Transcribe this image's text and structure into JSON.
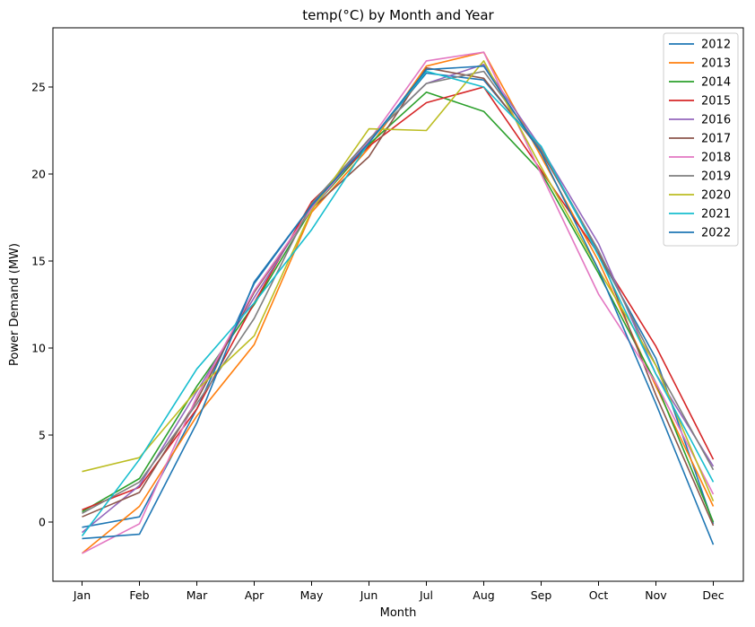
{
  "chart_data": {
    "type": "line",
    "title": "temp(°C) by Month and Year",
    "xlabel": "Month",
    "ylabel": "Power Demand (MW)",
    "ylim": [
      -2.5,
      28
    ],
    "yticks": [
      0,
      5,
      10,
      15,
      20,
      25
    ],
    "categories": [
      "Jan",
      "Feb",
      "Mar",
      "Apr",
      "May",
      "Jun",
      "Jul",
      "Aug",
      "Sep",
      "Oct",
      "Nov",
      "Dec"
    ],
    "grid": false,
    "legend_position": "top-right",
    "series": [
      {
        "name": "2012",
        "color": "#1f77b4",
        "values": [
          -0.3,
          0.3,
          6.5,
          13.7,
          18.2,
          21.8,
          25.8,
          25.4,
          21.4,
          15.4,
          9.4,
          -0.1
        ]
      },
      {
        "name": "2013",
        "color": "#ff7f0e",
        "values": [
          -1.8,
          0.9,
          6.1,
          10.2,
          17.8,
          21.5,
          26.2,
          27.0,
          21.0,
          15.0,
          7.8,
          0.9
        ]
      },
      {
        "name": "2014",
        "color": "#2ca02c",
        "values": [
          0.6,
          2.5,
          7.8,
          12.5,
          18.0,
          21.7,
          24.7,
          23.6,
          20.1,
          14.3,
          8.0,
          0.0
        ]
      },
      {
        "name": "2015",
        "color": "#d62728",
        "values": [
          0.7,
          2.0,
          6.5,
          12.6,
          18.4,
          21.6,
          24.1,
          25.0,
          20.2,
          15.4,
          10.1,
          3.6
        ]
      },
      {
        "name": "2016",
        "color": "#9467bd",
        "values": [
          -0.6,
          2.1,
          7.5,
          12.9,
          18.1,
          22.0,
          25.2,
          26.3,
          21.5,
          16.0,
          8.5,
          3.2
        ]
      },
      {
        "name": "2017",
        "color": "#8c564b",
        "values": [
          0.3,
          1.7,
          7.0,
          13.2,
          18.0,
          21.0,
          26.1,
          25.5,
          21.3,
          15.6,
          7.3,
          -0.2
        ]
      },
      {
        "name": "2018",
        "color": "#e377c2",
        "values": [
          -1.8,
          -0.1,
          7.2,
          13.3,
          18.0,
          21.9,
          26.5,
          27.0,
          20.0,
          13.1,
          8.0,
          1.6
        ]
      },
      {
        "name": "2019",
        "color": "#7f7f7f",
        "values": [
          0.5,
          2.3,
          6.8,
          11.7,
          18.3,
          22.0,
          25.2,
          25.9,
          21.4,
          15.6,
          9.0,
          3.0
        ]
      },
      {
        "name": "2020",
        "color": "#bcbd22",
        "values": [
          2.9,
          3.7,
          7.6,
          10.7,
          17.9,
          22.6,
          22.5,
          26.5,
          20.4,
          14.5,
          9.0,
          1.2
        ]
      },
      {
        "name": "2021",
        "color": "#17becf",
        "values": [
          -0.8,
          3.6,
          8.8,
          12.6,
          16.8,
          21.8,
          25.9,
          25.0,
          21.6,
          15.3,
          8.5,
          2.3
        ]
      },
      {
        "name": "2022",
        "color": "#1f77b4",
        "values": [
          -0.95,
          -0.7,
          5.7,
          13.8,
          18.2,
          21.8,
          26.0,
          26.2,
          21.2,
          14.5,
          6.8,
          -1.3
        ]
      }
    ]
  }
}
